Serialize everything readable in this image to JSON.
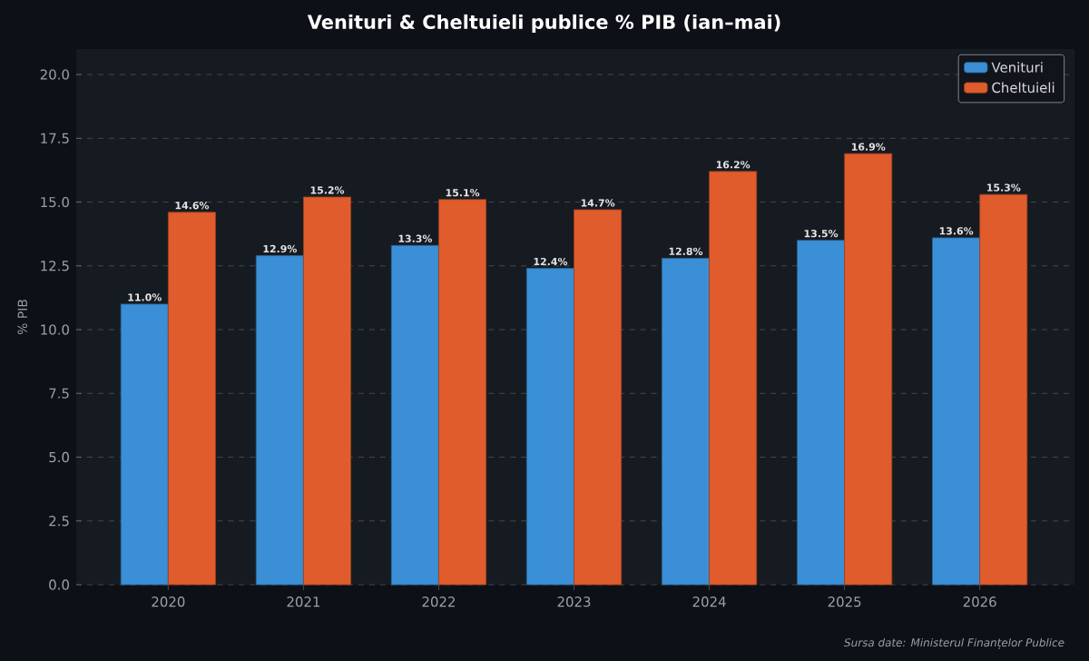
{
  "chart_data": {
    "type": "bar",
    "title": "Venituri & Cheltuieli publice % PIB  (ian–mai)",
    "ylabel": "% PIB",
    "categories": [
      "2020",
      "2021",
      "2022",
      "2023",
      "2024",
      "2025",
      "2026"
    ],
    "series": [
      {
        "name": "Venituri",
        "color": "#3a8fd6",
        "values": [
          11.0,
          12.9,
          13.3,
          12.4,
          12.8,
          13.5,
          13.6
        ],
        "value_labels": [
          "11.0%",
          "12.9%",
          "13.3%",
          "12.4%",
          "12.8%",
          "13.5%",
          "13.6%"
        ]
      },
      {
        "name": "Cheltuieli",
        "color": "#e05c2c",
        "values": [
          14.6,
          15.2,
          15.1,
          14.7,
          16.2,
          16.9,
          15.3
        ],
        "value_labels": [
          "14.6%",
          "15.2%",
          "15.1%",
          "14.7%",
          "16.2%",
          "16.9%",
          "15.3%"
        ]
      }
    ],
    "ylim": [
      0,
      21
    ],
    "yticks": [
      {
        "value": 0,
        "label": "0.0"
      },
      {
        "value": 2.5,
        "label": "2.5"
      },
      {
        "value": 5,
        "label": "5.0"
      },
      {
        "value": 7.5,
        "label": "7.5"
      },
      {
        "value": 10,
        "label": "10.0"
      },
      {
        "value": 12.5,
        "label": "12.5"
      },
      {
        "value": 15,
        "label": "15.0"
      },
      {
        "value": 17.5,
        "label": "17.5"
      },
      {
        "value": 20,
        "label": "20.0"
      }
    ],
    "grid": "y",
    "legend": "top right",
    "annotations": [
      "Sursa date: Ministerul Finanțelor Publice"
    ]
  }
}
